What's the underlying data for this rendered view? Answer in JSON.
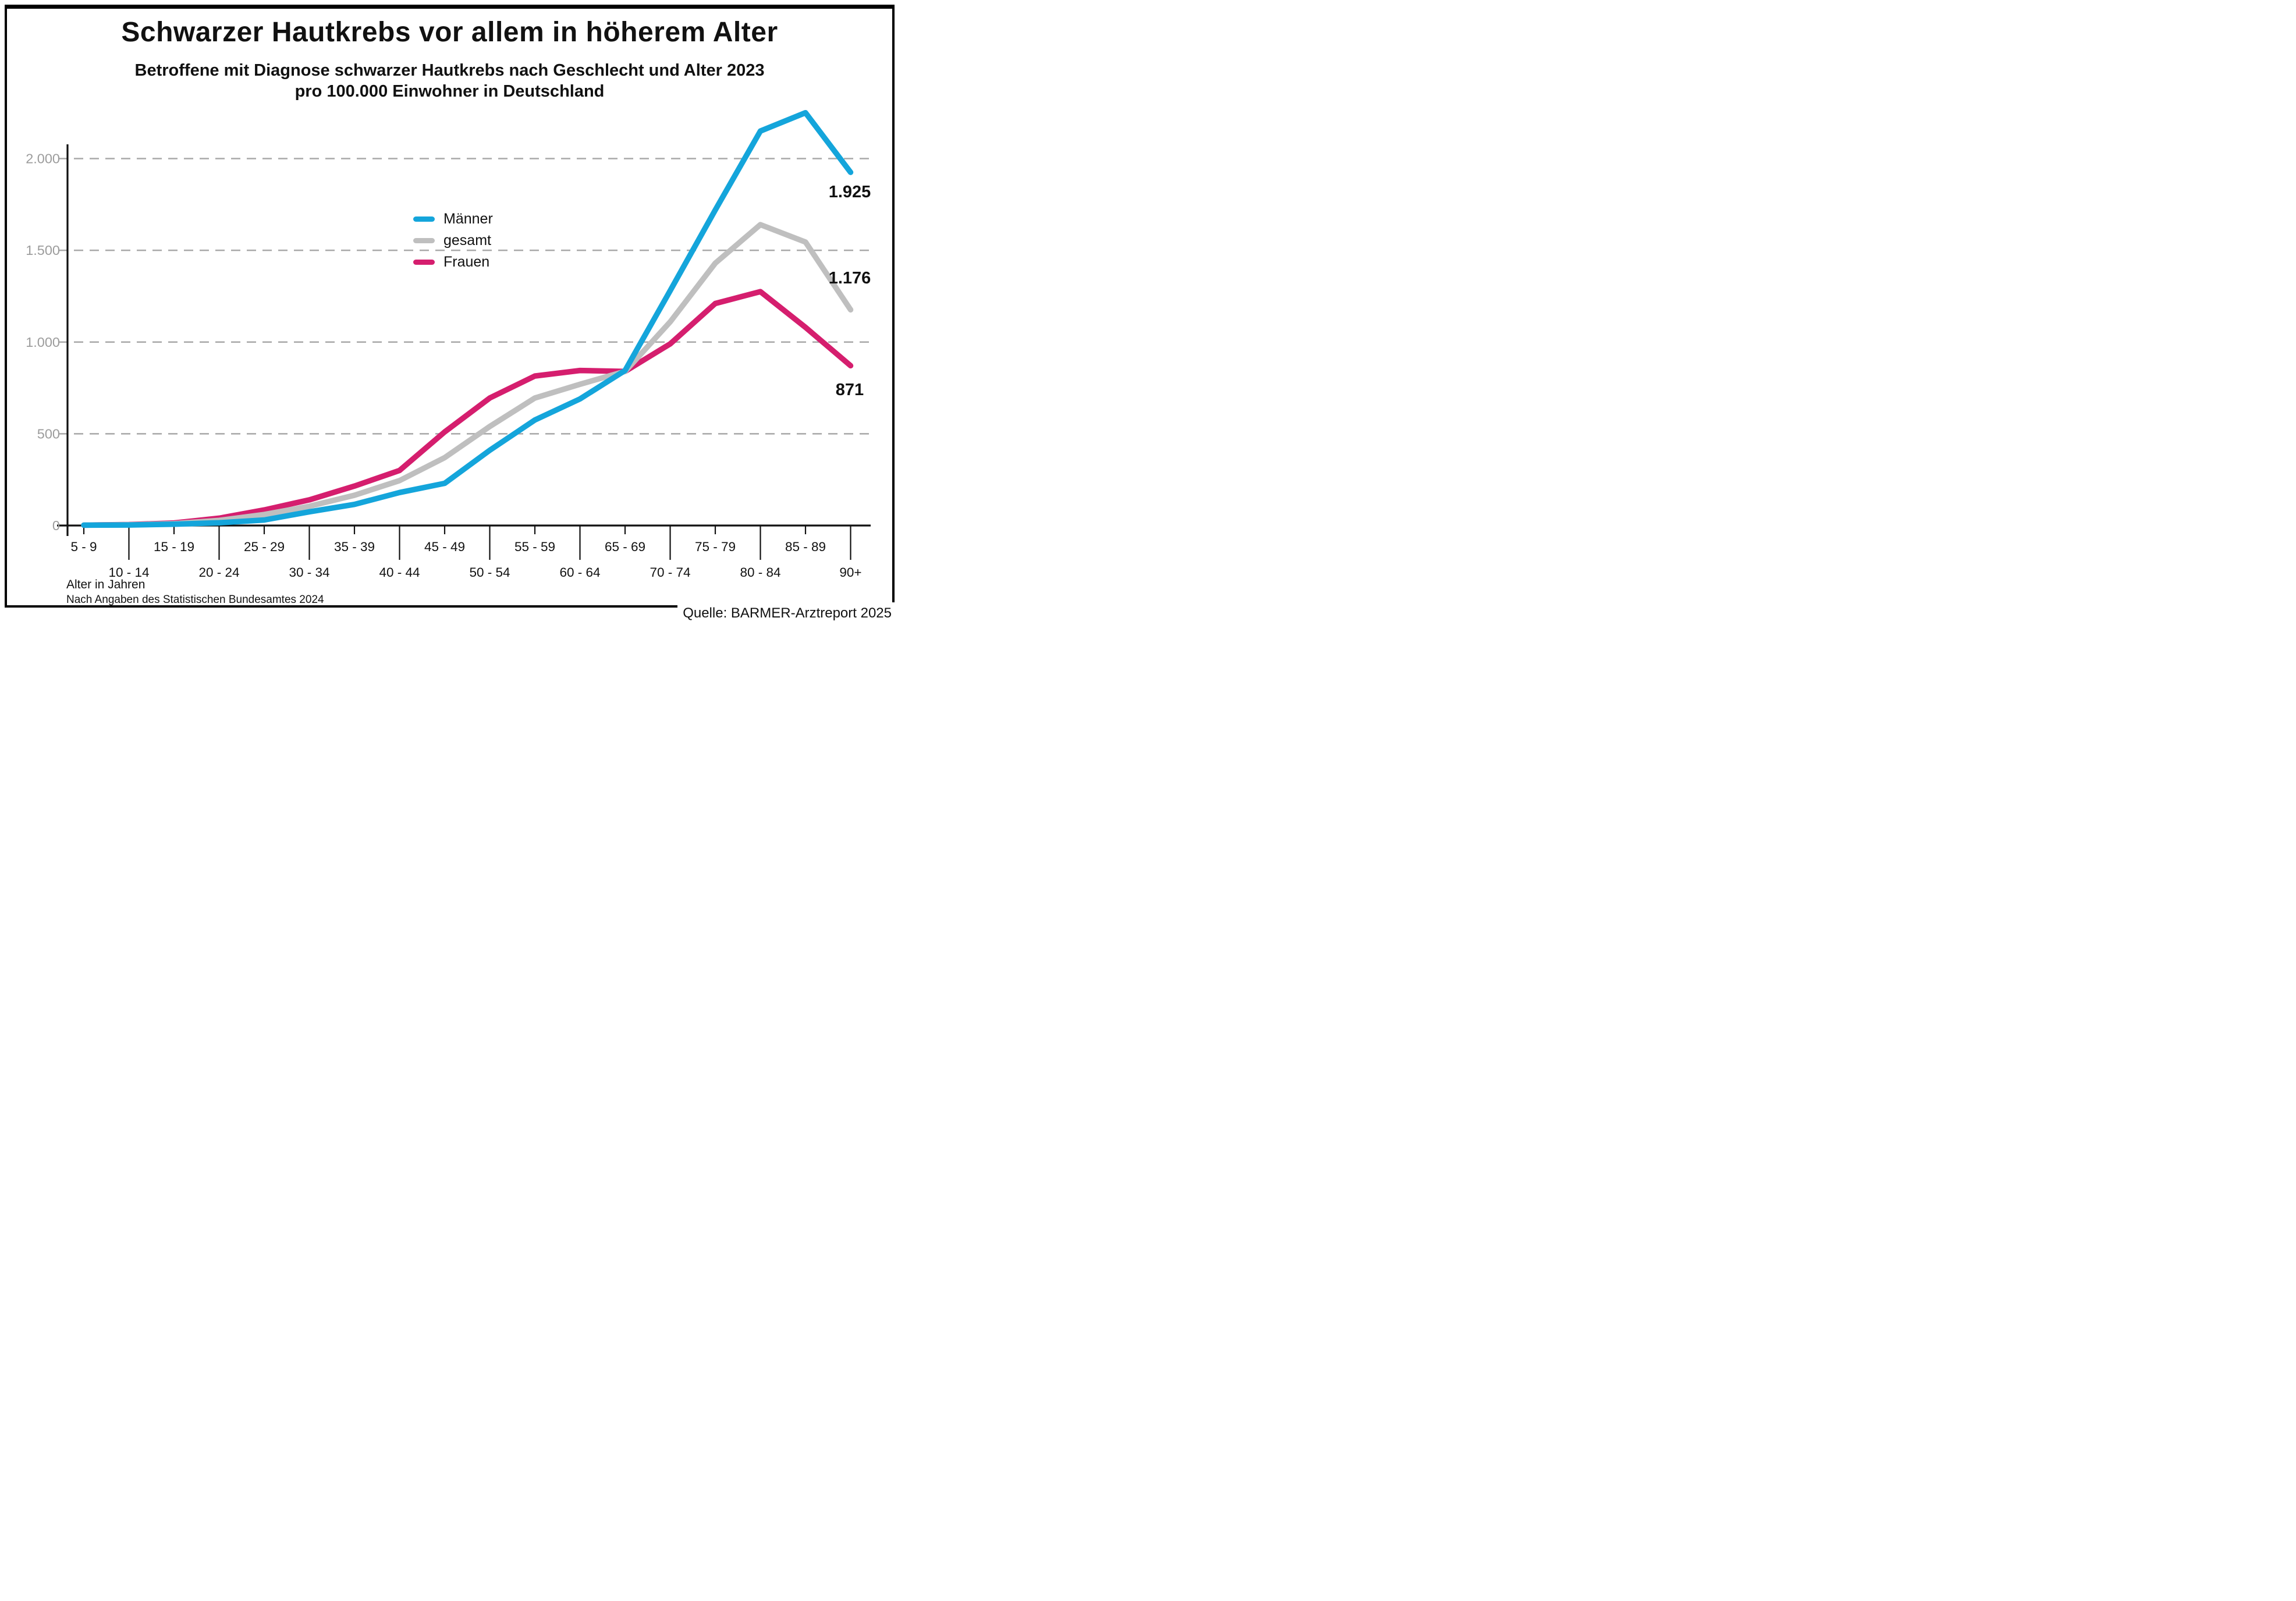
{
  "title": "Schwarzer Hautkrebs vor allem in höherem Alter",
  "subtitle": {
    "line1": "Betroffene mit Diagnose schwarzer Hautkrebs nach Geschlecht und Alter 2023",
    "line2": "pro 100.000 Einwohner in Deutschland"
  },
  "legend": {
    "items": [
      {
        "label": "Männer",
        "color": "#14A5DB"
      },
      {
        "label": "gesamt",
        "color": "#BFBFBF"
      },
      {
        "label": "Frauen",
        "color": "#D51E6E"
      }
    ]
  },
  "annotations": {
    "maenner_end": "1.925",
    "gesamt_end": "1.176",
    "frauen_end": "871"
  },
  "axis": {
    "y_tick_labels": [
      "0",
      "500",
      "1.000",
      "1.500",
      "2.000"
    ],
    "x_label": "Alter in Jahren"
  },
  "footer": {
    "note": "Nach Angaben des Statistischen Bundesamtes 2024",
    "source": "Quelle: BARMER-Arztreport 2025"
  },
  "chart_data": {
    "type": "line",
    "title": "Schwarzer Hautkrebs vor allem in höherem Alter",
    "subtitle": "Betroffene mit Diagnose schwarzer Hautkrebs nach Geschlecht und Alter 2023 pro 100.000 Einwohner in Deutschland",
    "categories": [
      "5 - 9",
      "10 - 14",
      "15 - 19",
      "20 - 24",
      "25 - 29",
      "30 - 34",
      "35 - 39",
      "40 - 44",
      "45 - 49",
      "50 - 54",
      "55 - 59",
      "60 - 64",
      "65 - 69",
      "70 - 74",
      "75 - 79",
      "80 - 84",
      "85 - 89",
      "90+"
    ],
    "series": [
      {
        "name": "Männer",
        "color": "#14A5DB",
        "values": [
          2,
          3,
          7,
          15,
          30,
          75,
          115,
          180,
          230,
          410,
          575,
          690,
          845,
          1280,
          1720,
          2150,
          2250,
          1925
        ]
      },
      {
        "name": "gesamt",
        "color": "#BFBFBF",
        "values": [
          2,
          4,
          10,
          28,
          60,
          105,
          165,
          245,
          370,
          540,
          695,
          770,
          840,
          1110,
          1430,
          1640,
          1545,
          1176
        ]
      },
      {
        "name": "Frauen",
        "color": "#D51E6E",
        "values": [
          2,
          5,
          14,
          40,
          85,
          140,
          215,
          300,
          510,
          695,
          815,
          845,
          840,
          990,
          1210,
          1275,
          1080,
          871
        ]
      }
    ],
    "xlabel": "Alter in Jahren",
    "ylabel": "",
    "ylim": [
      0,
      2300
    ],
    "yticks": [
      0,
      500,
      1000,
      1500,
      2000
    ],
    "grid": "dashed-horizontal",
    "legend_position": "inside-upper-middle",
    "end_labels": {
      "Männer": "1.925",
      "gesamt": "1.176",
      "Frauen": "871"
    }
  }
}
